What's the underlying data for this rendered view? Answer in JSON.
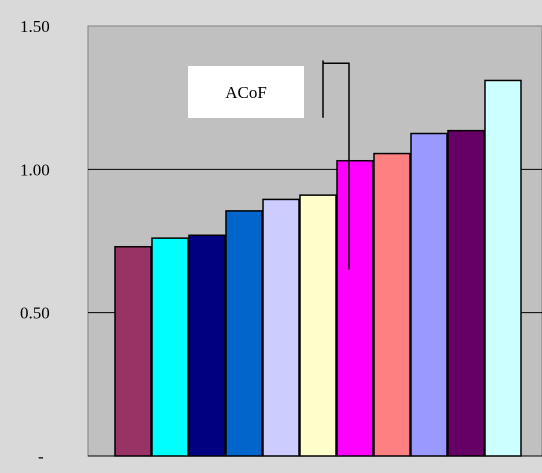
{
  "chart_data": {
    "type": "bar",
    "title": "",
    "xlabel": "",
    "ylabel": "",
    "ylim": [
      0,
      1.5
    ],
    "yticks": [
      {
        "value": 0,
        "label": "-"
      },
      {
        "value": 0.5,
        "label": "0.50"
      },
      {
        "value": 1.0,
        "label": "1.00"
      },
      {
        "value": 1.5,
        "label": "1.50"
      }
    ],
    "grid": true,
    "values": [
      0.73,
      0.76,
      0.77,
      0.855,
      0.895,
      0.91,
      1.03,
      1.055,
      1.125,
      1.135,
      1.31
    ],
    "colors": [
      "#993366",
      "#00ffff",
      "#000080",
      "#0066cc",
      "#ccccff",
      "#ffffcc",
      "#ff00ff",
      "#ff8080",
      "#9999ff",
      "#660066",
      "#ccffff"
    ],
    "annotation": {
      "label": "ACoF",
      "bar_index": 6,
      "stem_bottom_value": 0.65,
      "stem_top_value": 1.17,
      "hook_top_value": 1.38,
      "hook_bottom_value": 1.18
    },
    "colors_meta": {
      "plot_area": "#c0c0c0",
      "page_background": "#d9d9d9",
      "plot_border": "#808080",
      "gridline": "#000000"
    }
  }
}
